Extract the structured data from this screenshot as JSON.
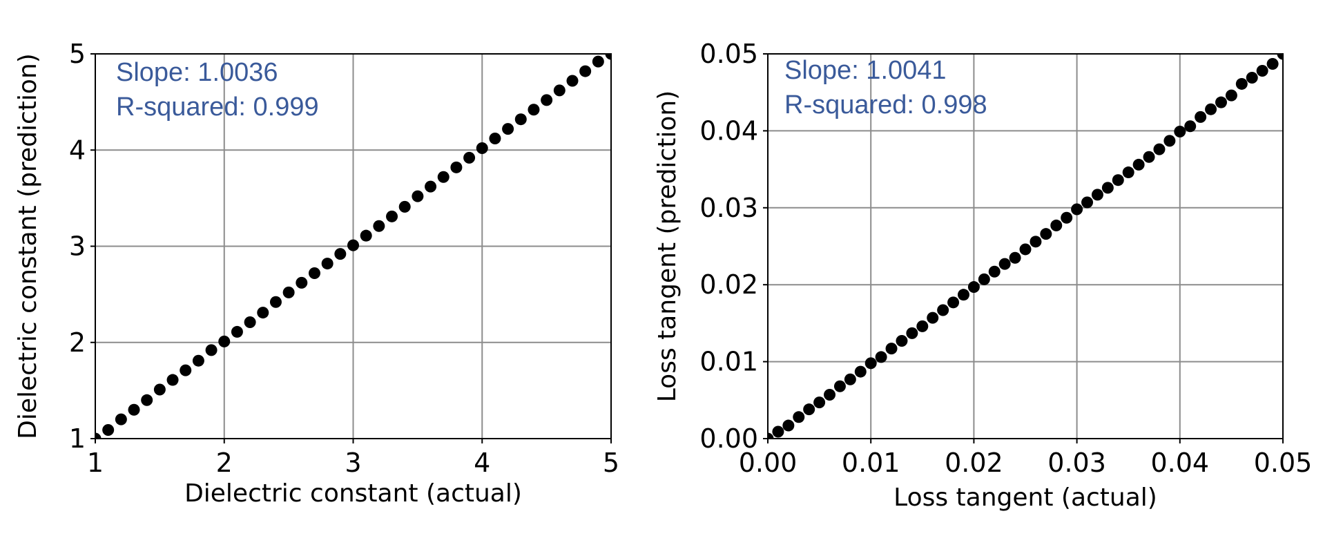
{
  "colors": {
    "marker": "#000000",
    "annotation": "#3a5a9a",
    "grid": "#8c8c8c"
  },
  "chart_data": [
    {
      "type": "scatter",
      "title": "",
      "xlabel": "Dielectric constant (actual)",
      "ylabel": "Dielectric constant (prediction)",
      "xlim": [
        1,
        5
      ],
      "ylim": [
        1,
        5
      ],
      "xticks": [
        "1",
        "2",
        "3",
        "4",
        "5"
      ],
      "yticks": [
        "1",
        "2",
        "3",
        "4",
        "5"
      ],
      "grid": true,
      "annotations": [
        "Slope: 1.0036",
        "R-squared: 0.999"
      ],
      "series": [
        {
          "x": [
            1.0,
            1.1,
            1.2,
            1.3,
            1.4,
            1.5,
            1.6,
            1.7,
            1.8,
            1.9,
            2.0,
            2.1,
            2.2,
            2.3,
            2.4,
            2.5,
            2.6,
            2.7,
            2.8,
            2.9,
            3.0,
            3.1,
            3.2,
            3.3,
            3.4,
            3.5,
            3.6,
            3.7,
            3.8,
            3.9,
            4.0,
            4.1,
            4.2,
            4.3,
            4.4,
            4.5,
            4.6,
            4.7,
            4.8,
            4.9,
            5.0
          ],
          "y": [
            1.0,
            1.09,
            1.2,
            1.3,
            1.4,
            1.51,
            1.61,
            1.71,
            1.81,
            1.92,
            2.01,
            2.11,
            2.21,
            2.31,
            2.42,
            2.52,
            2.62,
            2.72,
            2.82,
            2.92,
            3.01,
            3.11,
            3.21,
            3.31,
            3.41,
            3.52,
            3.62,
            3.72,
            3.82,
            3.92,
            4.02,
            4.12,
            4.22,
            4.32,
            4.42,
            4.52,
            4.62,
            4.72,
            4.82,
            4.92,
            5.0
          ]
        }
      ]
    },
    {
      "type": "scatter",
      "title": "",
      "xlabel": "Loss tangent (actual)",
      "ylabel": "Loss tangent (prediction)",
      "xlim": [
        0,
        0.05
      ],
      "ylim": [
        0,
        0.05
      ],
      "xticks": [
        "0.00",
        "0.01",
        "0.02",
        "0.03",
        "0.04",
        "0.05"
      ],
      "yticks": [
        "0.00",
        "0.01",
        "0.02",
        "0.03",
        "0.04",
        "0.05"
      ],
      "grid": true,
      "annotations": [
        "Slope: 1.0041",
        "R-squared: 0.998"
      ],
      "series": [
        {
          "x": [
            0.0,
            0.001,
            0.002,
            0.003,
            0.004,
            0.005,
            0.006,
            0.007,
            0.008,
            0.009,
            0.01,
            0.011,
            0.012,
            0.013,
            0.014,
            0.015,
            0.016,
            0.017,
            0.018,
            0.019,
            0.02,
            0.021,
            0.022,
            0.023,
            0.024,
            0.025,
            0.026,
            0.027,
            0.028,
            0.029,
            0.03,
            0.031,
            0.032,
            0.033,
            0.034,
            0.035,
            0.036,
            0.037,
            0.038,
            0.039,
            0.04,
            0.041,
            0.042,
            0.043,
            0.044,
            0.045,
            0.046,
            0.047,
            0.048,
            0.049,
            0.05
          ],
          "y": [
            0.0,
            0.0009,
            0.0017,
            0.0028,
            0.0038,
            0.0047,
            0.0057,
            0.0068,
            0.0077,
            0.0087,
            0.0098,
            0.0106,
            0.0117,
            0.0127,
            0.0137,
            0.0146,
            0.0157,
            0.0167,
            0.0177,
            0.0187,
            0.0197,
            0.0207,
            0.0217,
            0.0227,
            0.0235,
            0.0246,
            0.0256,
            0.0266,
            0.0277,
            0.0287,
            0.0298,
            0.0307,
            0.0317,
            0.0326,
            0.0336,
            0.0346,
            0.0356,
            0.0366,
            0.0376,
            0.0387,
            0.0399,
            0.0406,
            0.0418,
            0.0428,
            0.0437,
            0.0446,
            0.0461,
            0.0469,
            0.0478,
            0.0487,
            0.05
          ]
        }
      ]
    }
  ]
}
